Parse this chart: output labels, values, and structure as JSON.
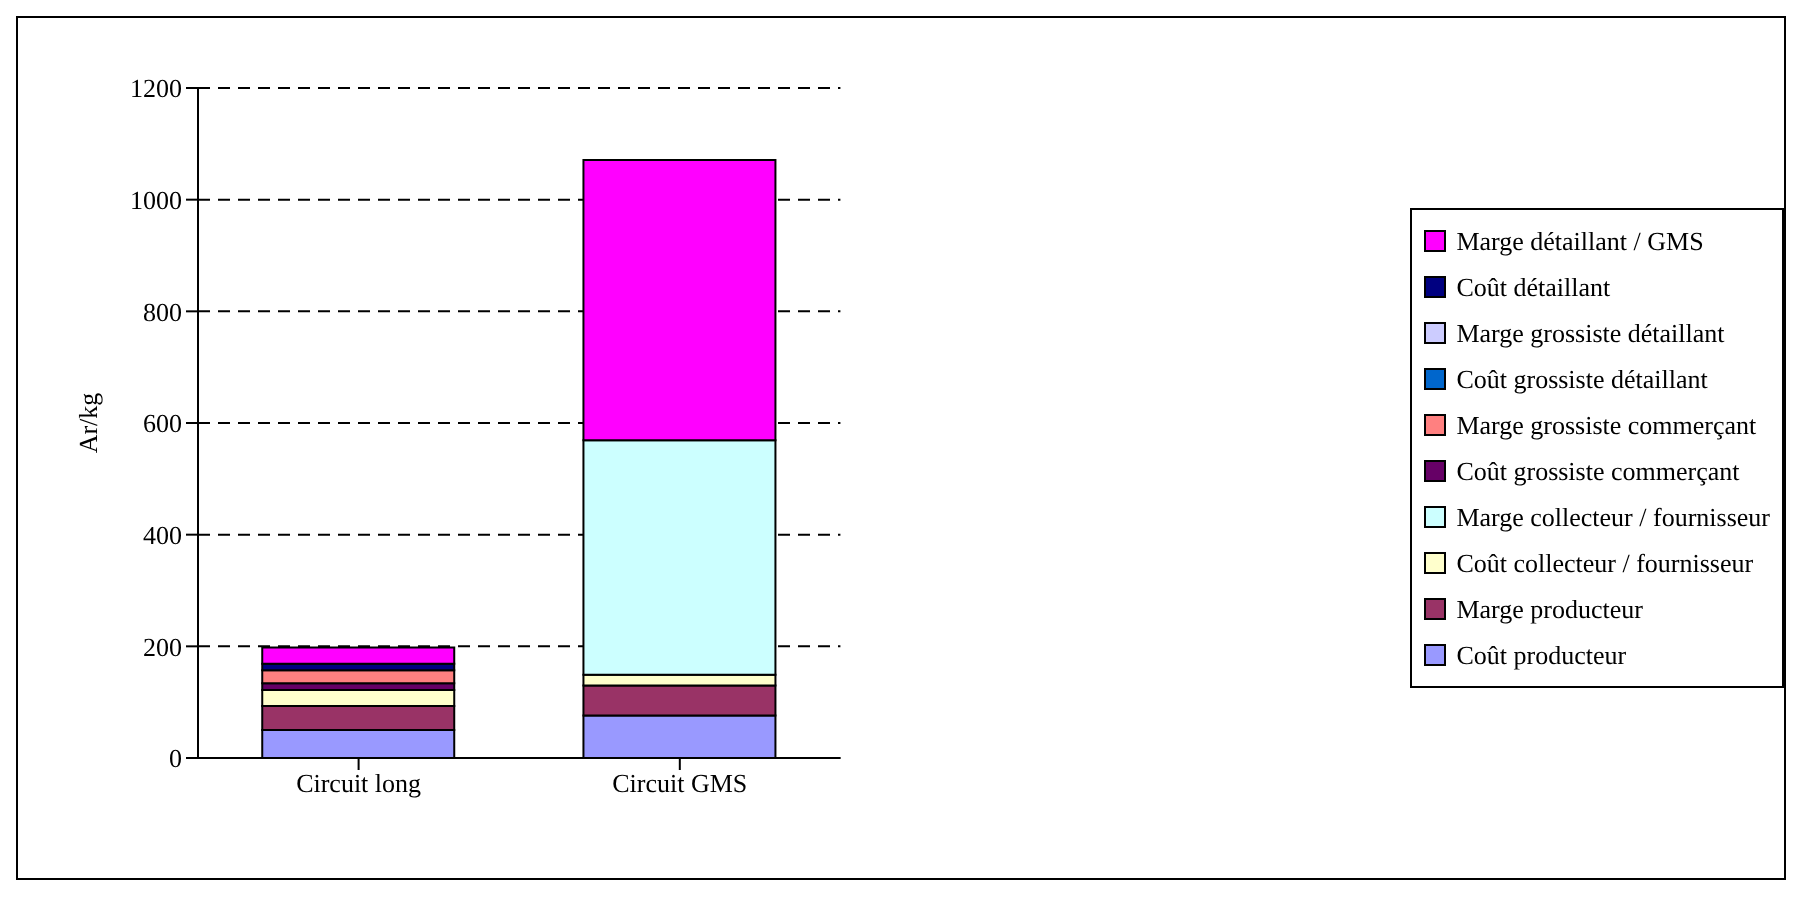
{
  "chart_data": {
    "type": "bar",
    "stacked": true,
    "ylabel": "Ar/kg",
    "categories": [
      "Circuit long",
      "Circuit GMS"
    ],
    "ylim": [
      0,
      1200
    ],
    "yticks": [
      0,
      200,
      400,
      600,
      800,
      1000,
      1200
    ],
    "grid": "y",
    "legend": "right",
    "series": [
      {
        "name": "Coût producteur",
        "color": "#9999ff",
        "values": [
          50,
          76
        ]
      },
      {
        "name": "Marge producteur",
        "color": "#993366",
        "values": [
          43,
          54
        ]
      },
      {
        "name": "Coût collecteur / fournisseur",
        "color": "#ffffcc",
        "values": [
          29,
          19
        ]
      },
      {
        "name": "Marge collecteur / fournisseur",
        "color": "#ccffff",
        "values": [
          0,
          420
        ]
      },
      {
        "name": "Coût grossiste commerçant",
        "color": "#660066",
        "values": [
          12,
          0
        ]
      },
      {
        "name": "Marge grossiste commerçant",
        "color": "#ff8080",
        "values": [
          23,
          0
        ]
      },
      {
        "name": "Coût grossiste détaillant",
        "color": "#0066cc",
        "values": [
          null,
          0
        ]
      },
      {
        "name": "Marge grossiste détaillant",
        "color": "#ccccff",
        "values": [
          null,
          0
        ]
      },
      {
        "name": "Coût détaillant",
        "color": "#000080",
        "values": [
          12,
          0
        ]
      },
      {
        "name": "Marge détaillant / GMS",
        "color": "#ff00ff",
        "values": [
          29,
          502
        ]
      }
    ]
  }
}
